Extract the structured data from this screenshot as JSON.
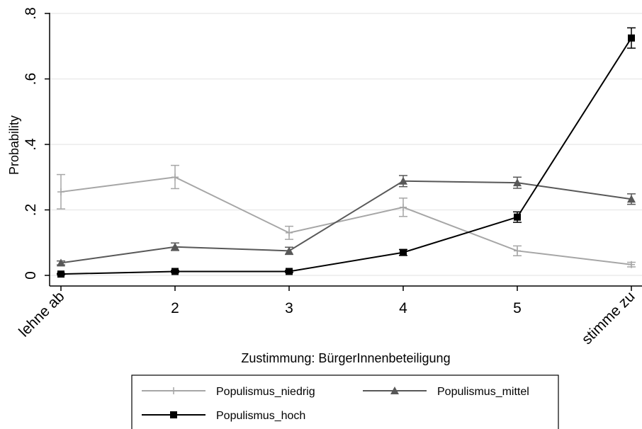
{
  "chart_data": {
    "type": "line",
    "xlabel": "Zustimmung: BürgerInnenbeteiligung",
    "ylabel": "Probability",
    "categories": [
      "lehne ab",
      "2",
      "3",
      "4",
      "5",
      "stimme zu"
    ],
    "ylim": [
      0,
      0.8
    ],
    "yticks": [
      {
        "value": 0,
        "label": "0"
      },
      {
        "value": 0.2,
        "label": ".2"
      },
      {
        "value": 0.4,
        "label": ".4"
      },
      {
        "value": 0.6,
        "label": ".6"
      },
      {
        "value": 0.8,
        "label": ".8"
      }
    ],
    "grid": true,
    "legend_position": "bottom",
    "series": [
      {
        "name": "Populismus_niedrig",
        "color": "#a6a6a6",
        "marker": "plus",
        "values": [
          0.255,
          0.3,
          0.13,
          0.208,
          0.075,
          0.033
        ],
        "ci": [
          [
            0.203,
            0.308
          ],
          [
            0.265,
            0.336
          ],
          [
            0.11,
            0.15
          ],
          [
            0.18,
            0.236
          ],
          [
            0.06,
            0.09
          ],
          [
            0.026,
            0.04
          ]
        ]
      },
      {
        "name": "Populismus_mittel",
        "color": "#585858",
        "marker": "triangle",
        "values": [
          0.038,
          0.087,
          0.075,
          0.288,
          0.283,
          0.233
        ],
        "ci": [
          [
            0.032,
            0.044
          ],
          [
            0.076,
            0.099
          ],
          [
            0.064,
            0.086
          ],
          [
            0.271,
            0.305
          ],
          [
            0.266,
            0.3
          ],
          [
            0.217,
            0.249
          ]
        ]
      },
      {
        "name": "Populismus_hoch",
        "color": "#000000",
        "marker": "square",
        "values": [
          0.004,
          0.012,
          0.012,
          0.07,
          0.178,
          0.725
        ],
        "ci": [
          [
            0.002,
            0.006
          ],
          [
            0.009,
            0.015
          ],
          [
            0.009,
            0.015
          ],
          [
            0.061,
            0.079
          ],
          [
            0.162,
            0.194
          ],
          [
            0.694,
            0.756
          ]
        ]
      }
    ]
  }
}
